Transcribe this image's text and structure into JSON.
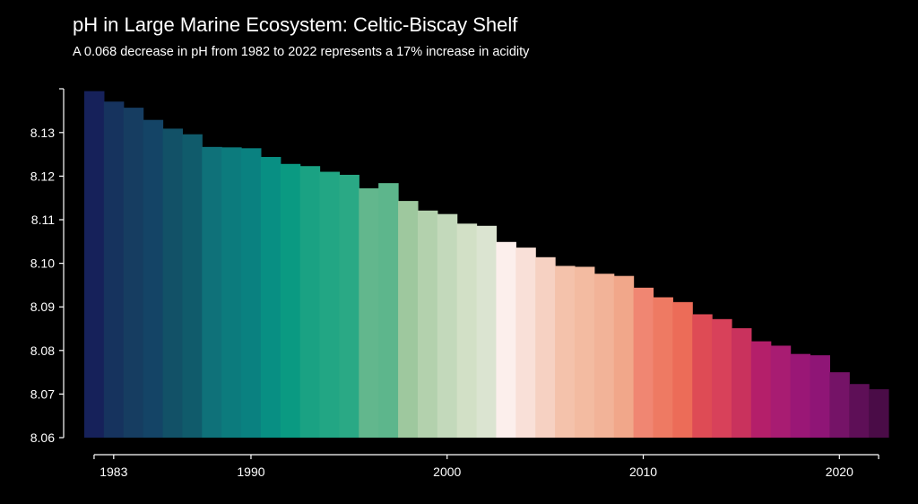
{
  "chart_data": {
    "type": "bar",
    "title": "pH in Large Marine Ecosystem: Celtic-Biscay Shelf",
    "subtitle": "A 0.068 decrease in pH from 1982 to 2022 represents a 17% increase in acidity",
    "xlabel": "",
    "ylabel": "",
    "ylim": [
      8.06,
      8.14
    ],
    "xlim": [
      1982,
      2022
    ],
    "yticks": [
      "8.06",
      "8.07",
      "8.08",
      "8.09",
      "8.10",
      "8.11",
      "8.12",
      "8.13"
    ],
    "xticks": [
      "1983",
      "1990",
      "2000",
      "2010",
      "2020"
    ],
    "x": [
      1982,
      1983,
      1984,
      1985,
      1986,
      1987,
      1988,
      1989,
      1990,
      1991,
      1992,
      1993,
      1994,
      1995,
      1996,
      1997,
      1998,
      1999,
      2000,
      2001,
      2002,
      2003,
      2004,
      2005,
      2006,
      2007,
      2008,
      2009,
      2010,
      2011,
      2012,
      2013,
      2014,
      2015,
      2016,
      2017,
      2018,
      2019,
      2020,
      2021,
      2022
    ],
    "values": [
      8.1395,
      8.1371,
      8.1357,
      8.1329,
      8.1309,
      8.1296,
      8.1267,
      8.1266,
      8.1264,
      8.1244,
      8.1228,
      8.1223,
      8.121,
      8.1203,
      8.1172,
      8.1184,
      8.1143,
      8.1121,
      8.1113,
      8.1091,
      8.1086,
      8.1049,
      8.1036,
      8.1014,
      8.0994,
      8.0992,
      8.0976,
      8.0971,
      8.0944,
      8.0922,
      8.0911,
      8.0883,
      8.0872,
      8.0851,
      8.0821,
      8.0811,
      8.0792,
      8.0789,
      8.075,
      8.0723,
      8.0711
    ],
    "colors": [
      "#16215a",
      "#16335e",
      "#163d61",
      "#144466",
      "#125167",
      "#105b6b",
      "#0f7179",
      "#0c7b7d",
      "#0a8180",
      "#088f83",
      "#0a9a82",
      "#1aa283",
      "#22a684",
      "#2aa985",
      "#62b78d",
      "#5db68c",
      "#9ec89e",
      "#b3d1ad",
      "#c3d9bb",
      "#d2e0c6",
      "#dbe4d1",
      "#fcefec",
      "#f9e0d8",
      "#f6d1c2",
      "#f4c2ab",
      "#f3bba1",
      "#f2b398",
      "#f1a78a",
      "#f08672",
      "#ee7a63",
      "#ec6c58",
      "#de4b55",
      "#d8415a",
      "#c9325d",
      "#b41f6a",
      "#a81c72",
      "#9a1776",
      "#8f1576",
      "#751367",
      "#5e0f57",
      "#4a0c47"
    ],
    "grid": false,
    "legend": "none"
  }
}
